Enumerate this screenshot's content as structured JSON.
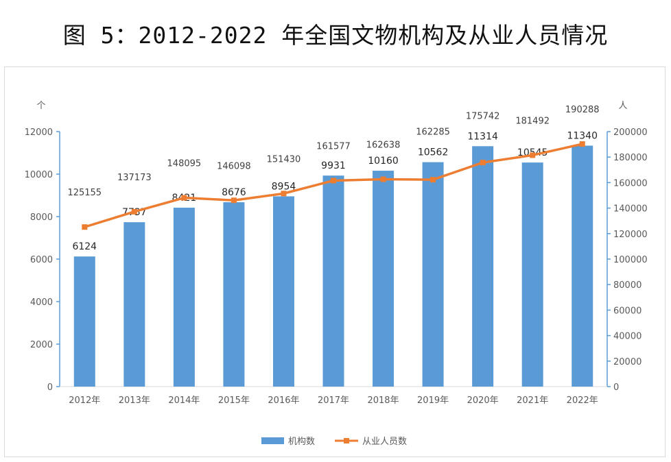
{
  "title": "图 5：2012-2022 年全国文物机构及从业人员情况",
  "chart_data": {
    "type": "bar+line",
    "categories": [
      "2012年",
      "2013年",
      "2014年",
      "2015年",
      "2016年",
      "2017年",
      "2018年",
      "2019年",
      "2020年",
      "2021年",
      "2022年"
    ],
    "series": [
      {
        "name": "机构数",
        "type": "bar",
        "axis": "left",
        "color": "#5b9bd5",
        "values": [
          6124,
          7737,
          8421,
          8676,
          8954,
          9931,
          10160,
          10562,
          11314,
          10545,
          11340
        ]
      },
      {
        "name": "从业人员数",
        "type": "line",
        "axis": "right",
        "color": "#ed7d31",
        "values": [
          125155,
          137173,
          148095,
          146098,
          151430,
          161577,
          162638,
          162285,
          175742,
          181492,
          190288
        ]
      }
    ],
    "y_left": {
      "unit": "个",
      "ylim": [
        0,
        12000
      ],
      "ticks": [
        0,
        2000,
        4000,
        6000,
        8000,
        10000,
        12000
      ]
    },
    "y_right": {
      "unit": "人",
      "ylim": [
        0,
        200000
      ],
      "ticks": [
        0,
        20000,
        40000,
        60000,
        80000,
        100000,
        120000,
        140000,
        160000,
        180000,
        200000
      ]
    },
    "legend": "bottom",
    "grid": false
  }
}
